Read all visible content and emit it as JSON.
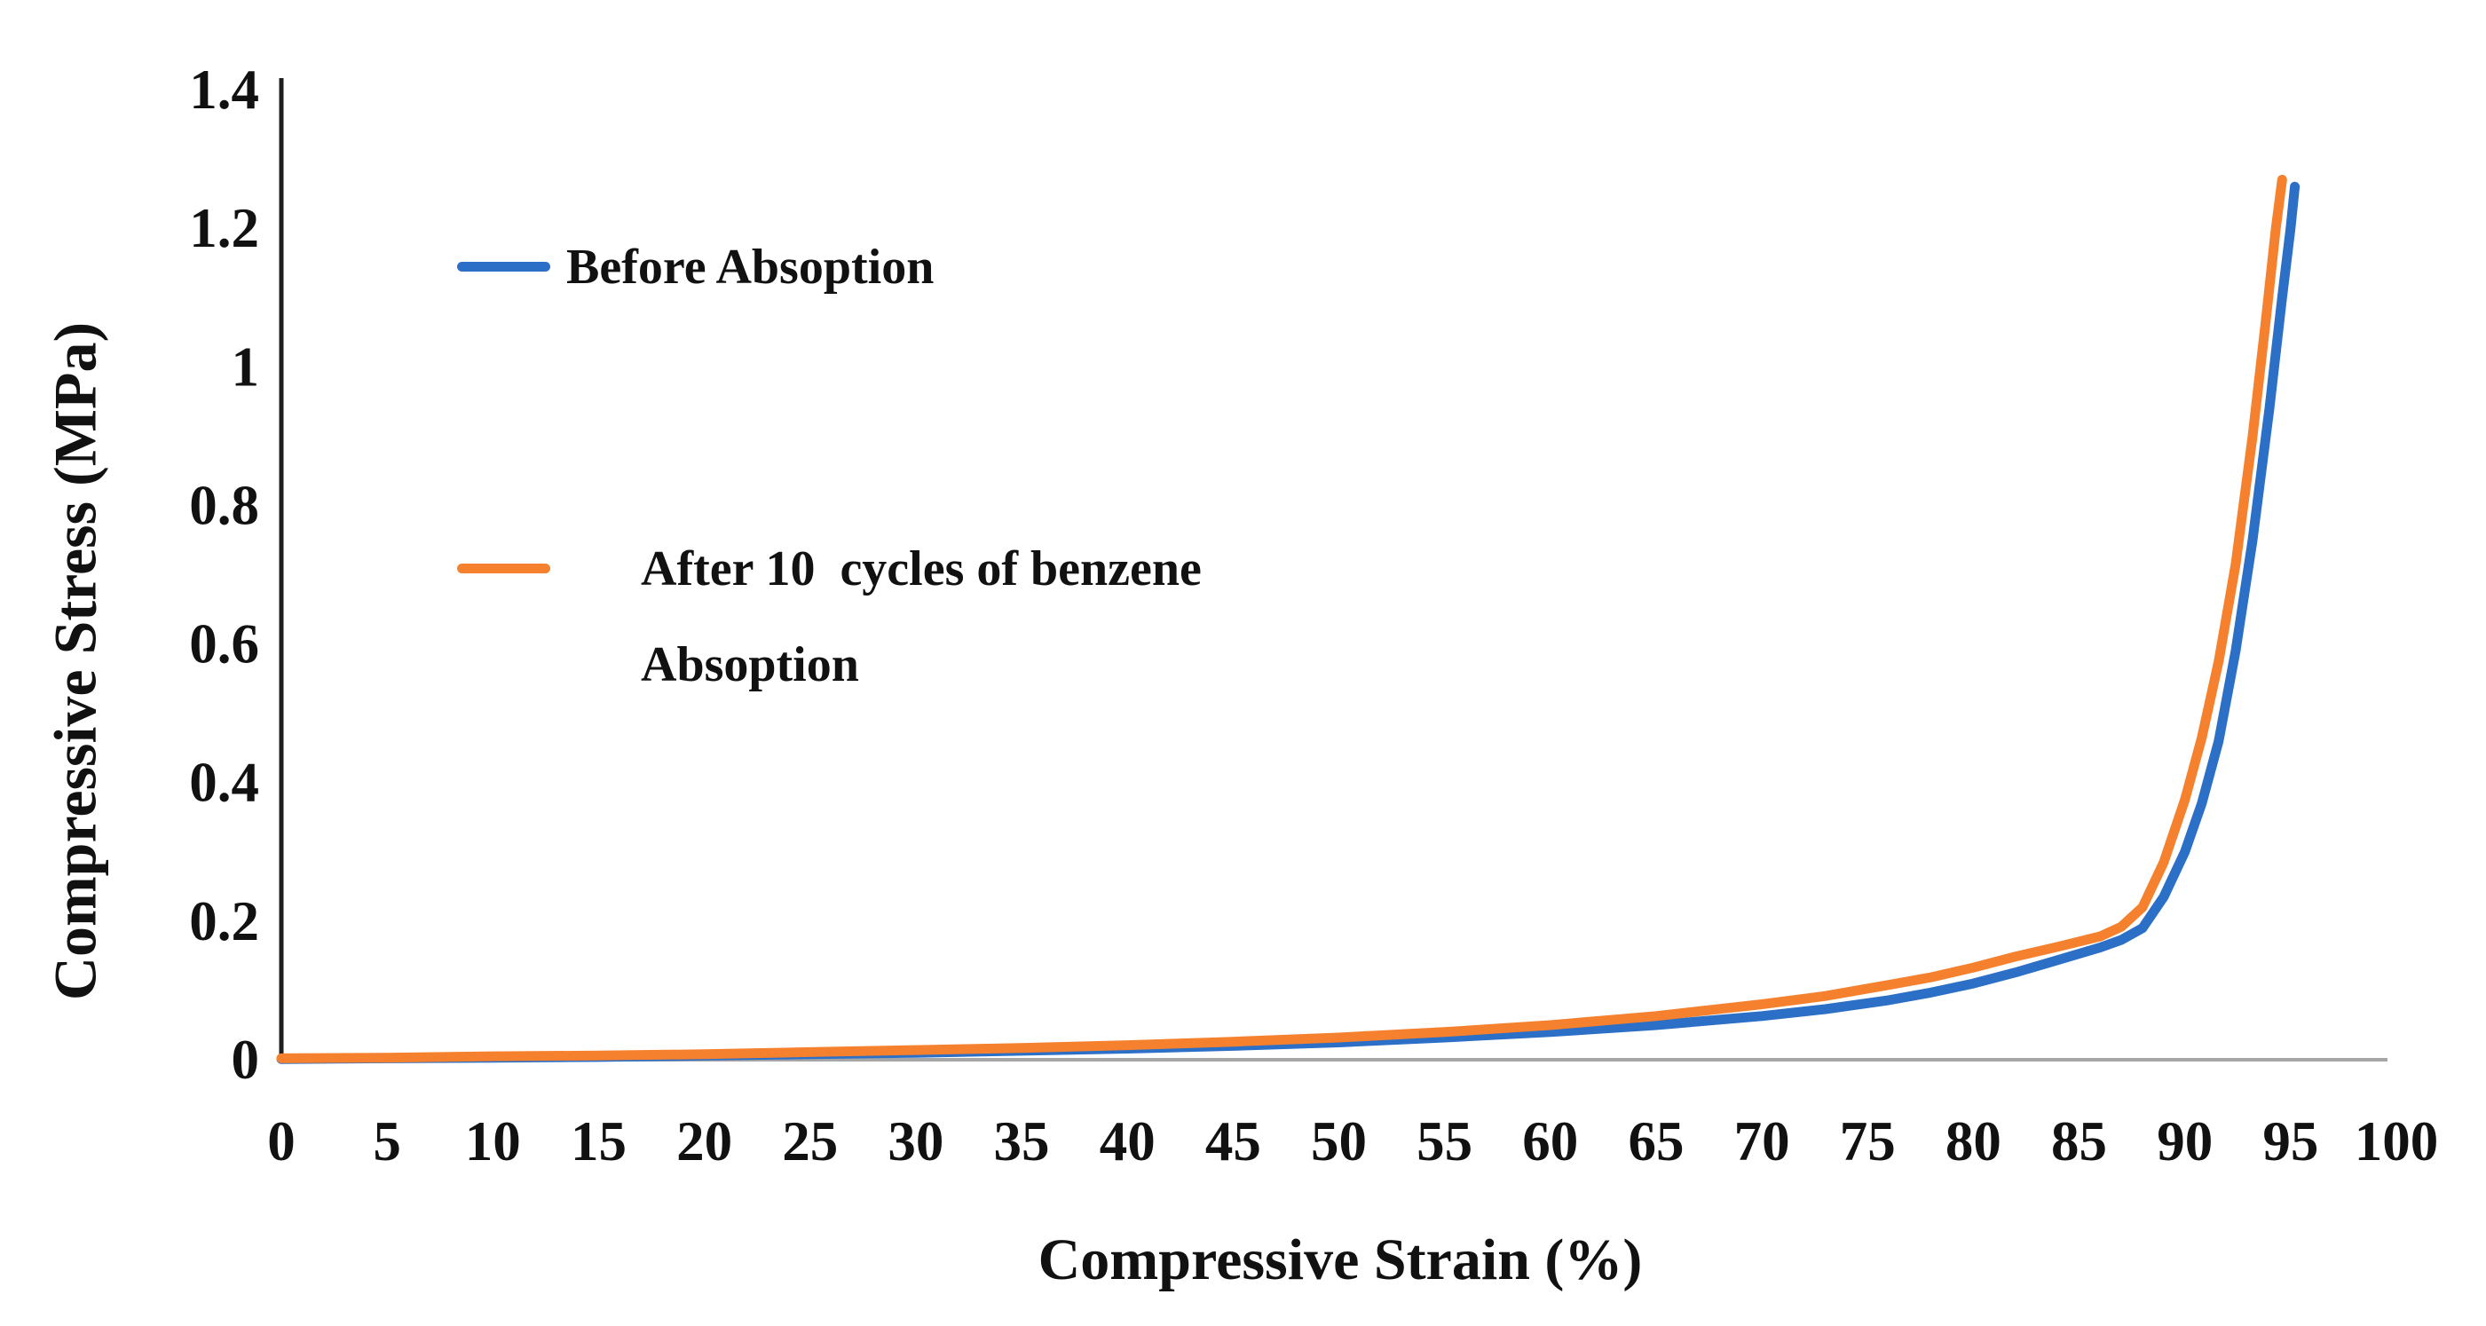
{
  "figure": {
    "background": "#ffffff",
    "text_color": "#111111",
    "axis_line_color": "#1f1f1f",
    "baseline_color": "#a6a6a6"
  },
  "legend": {
    "before_label": "Before Absoption",
    "after_line1": "After 10  cycles of benzene",
    "after_line2": "Absoption"
  },
  "chart_data": {
    "type": "line",
    "title": "",
    "xlabel": "Compressive Strain (%)",
    "ylabel": "Compressive Stress (MPa)",
    "xlim": [
      0,
      100
    ],
    "ylim": [
      0,
      1.4
    ],
    "grid": false,
    "legend_position": "inside-left",
    "x_ticks": {
      "values": [
        0,
        5,
        10,
        15,
        20,
        25,
        30,
        35,
        40,
        45,
        50,
        55,
        60,
        65,
        70,
        75,
        80,
        85,
        90,
        95,
        100
      ],
      "labels": [
        "0",
        "5",
        "10",
        "15",
        "20",
        "25",
        "30",
        "35",
        "40",
        "45",
        "50",
        "55",
        "60",
        "65",
        "70",
        "75",
        "80",
        "85",
        "90",
        "95",
        "100"
      ]
    },
    "y_ticks": {
      "values": [
        0,
        0.2,
        0.4,
        0.6,
        0.8,
        1,
        1.2,
        1.4
      ],
      "labels": [
        "0",
        "0.2",
        "0.4",
        "0.6",
        "0.8",
        "1",
        "1.2",
        "1.4"
      ]
    },
    "series": [
      {
        "name": "Before Absoption",
        "color": "#2b6fc6",
        "points": [
          [
            0,
            0.001
          ],
          [
            5,
            0.002
          ],
          [
            10,
            0.003
          ],
          [
            15,
            0.004
          ],
          [
            20,
            0.006
          ],
          [
            25,
            0.008
          ],
          [
            30,
            0.01
          ],
          [
            35,
            0.013
          ],
          [
            40,
            0.016
          ],
          [
            45,
            0.02
          ],
          [
            50,
            0.025
          ],
          [
            55,
            0.032
          ],
          [
            60,
            0.04
          ],
          [
            65,
            0.05
          ],
          [
            70,
            0.063
          ],
          [
            73,
            0.073
          ],
          [
            76,
            0.086
          ],
          [
            78,
            0.097
          ],
          [
            80,
            0.11
          ],
          [
            82,
            0.126
          ],
          [
            84,
            0.144
          ],
          [
            86,
            0.162
          ],
          [
            87,
            0.173
          ],
          [
            88,
            0.19
          ],
          [
            89,
            0.235
          ],
          [
            90,
            0.3
          ],
          [
            90.8,
            0.37
          ],
          [
            91.6,
            0.46
          ],
          [
            92.4,
            0.59
          ],
          [
            93.2,
            0.75
          ],
          [
            94,
            0.94
          ],
          [
            94.6,
            1.1
          ],
          [
            95,
            1.2
          ],
          [
            95.2,
            1.26
          ]
        ]
      },
      {
        "name": "After 10  cycles of benzene Absoption",
        "color": "#f5802d",
        "points": [
          [
            0,
            0.002
          ],
          [
            5,
            0.003
          ],
          [
            10,
            0.005
          ],
          [
            15,
            0.006
          ],
          [
            20,
            0.008
          ],
          [
            25,
            0.011
          ],
          [
            30,
            0.014
          ],
          [
            35,
            0.017
          ],
          [
            40,
            0.021
          ],
          [
            45,
            0.026
          ],
          [
            50,
            0.032
          ],
          [
            55,
            0.04
          ],
          [
            60,
            0.05
          ],
          [
            65,
            0.063
          ],
          [
            70,
            0.08
          ],
          [
            73,
            0.092
          ],
          [
            76,
            0.108
          ],
          [
            78,
            0.119
          ],
          [
            80,
            0.133
          ],
          [
            82,
            0.149
          ],
          [
            84,
            0.163
          ],
          [
            86,
            0.178
          ],
          [
            87,
            0.192
          ],
          [
            88,
            0.22
          ],
          [
            89,
            0.285
          ],
          [
            90,
            0.375
          ],
          [
            90.8,
            0.465
          ],
          [
            91.6,
            0.575
          ],
          [
            92.4,
            0.715
          ],
          [
            93.2,
            0.9
          ],
          [
            93.8,
            1.06
          ],
          [
            94.3,
            1.2
          ],
          [
            94.6,
            1.27
          ]
        ]
      }
    ]
  }
}
